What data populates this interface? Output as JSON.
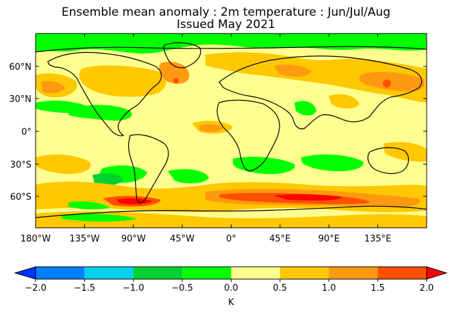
{
  "title": {
    "line1": "Ensemble mean anomaly : 2m temperature : Jun/Jul/Aug",
    "line2": "Issued May 2021"
  },
  "map": {
    "lon_ticks": [
      "180°W",
      "135°W",
      "90°W",
      "45°W",
      "0°",
      "45°E",
      "90°E",
      "135°E"
    ],
    "lat_ticks": [
      "60°N",
      "30°N",
      "0°",
      "30°S",
      "60°S"
    ]
  },
  "colorbar": {
    "levels": [
      "−2.0",
      "−1.5",
      "−1.0",
      "−0.5",
      "0.0",
      "0.5",
      "1.0",
      "1.5",
      "2.0"
    ],
    "colors": [
      "#0032ff",
      "#0080ff",
      "#00d0f0",
      "#00d030",
      "#00ff00",
      "#ffff90",
      "#ffc800",
      "#ff9a10",
      "#ff5000",
      "#ff0000"
    ],
    "unit": "K"
  }
}
